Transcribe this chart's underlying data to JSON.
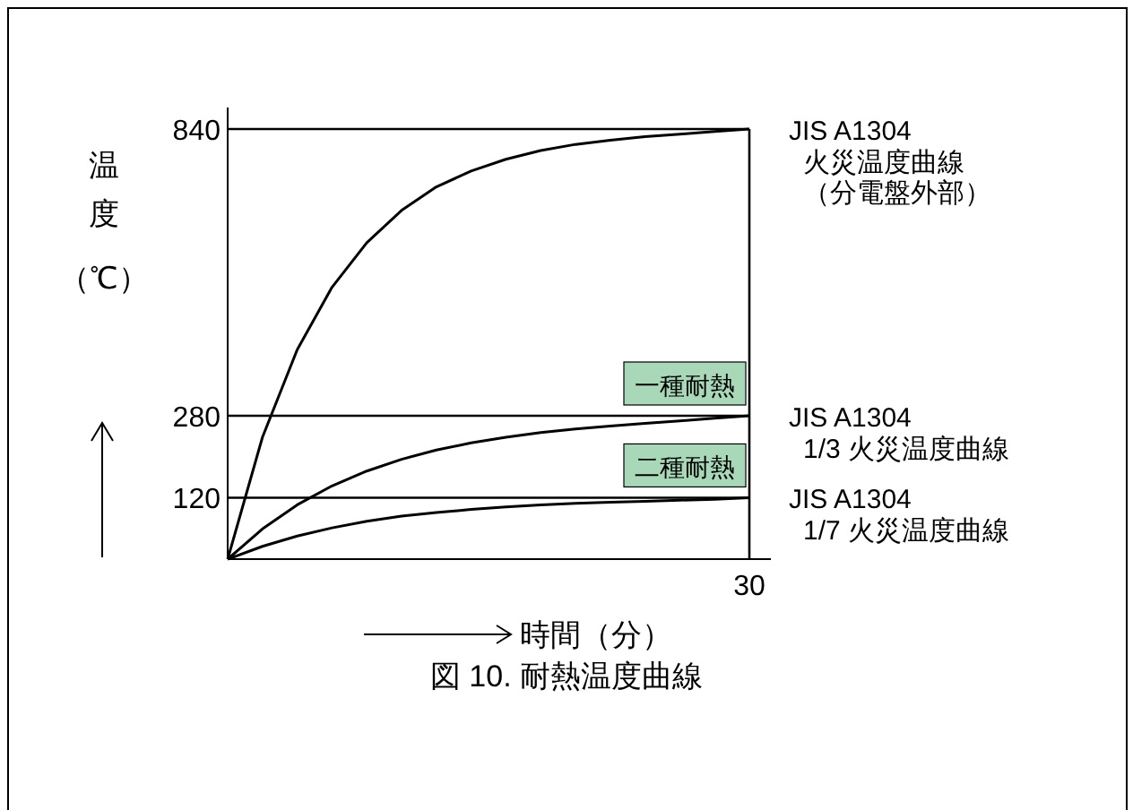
{
  "chart_data": {
    "type": "line",
    "xlabel": "時間（分）",
    "ylabel": "温度（℃）",
    "categories": [
      null,
      null,
      null,
      null,
      null,
      null,
      null,
      null,
      null,
      null,
      null,
      null,
      null,
      null,
      null,
      "30"
    ],
    "series": [
      {
        "name": "JIS A1304\n火災温度曲線（分電盤外部）",
        "color": "#000000",
        "values": [
          0,
          238,
          409,
          531,
          618,
          681,
          727,
          758,
          781,
          798,
          810,
          818,
          825,
          830,
          835,
          840
        ]
      },
      {
        "name": "JIS A1304\n1/3 火災温度曲線",
        "color": "#000000",
        "values": [
          0,
          59,
          106,
          143,
          172,
          195,
          213,
          227,
          238,
          247,
          254,
          260,
          265,
          270,
          275,
          280
        ]
      },
      {
        "name": "JIS A1304\n1/7 火災温度曲線",
        "color": "#000000",
        "values": [
          0,
          25,
          45,
          61,
          74,
          84,
          91,
          97,
          102,
          106,
          109,
          111,
          113,
          115,
          117,
          120
        ]
      }
    ],
    "ylim": [
      0,
      840
    ],
    "yticks": [
      120,
      280,
      840
    ],
    "ref_lines": [
      {
        "axis": "y",
        "value": 280,
        "color": "#000000"
      },
      {
        "axis": "y",
        "value": 120,
        "color": "#000000"
      }
    ],
    "annotations": [
      "一種耐熱",
      "二種耐熱",
      "図 10. 耐熱温度曲線"
    ],
    "grid": false,
    "legend": false,
    "marker": "none",
    "line_style": "solid"
  }
}
